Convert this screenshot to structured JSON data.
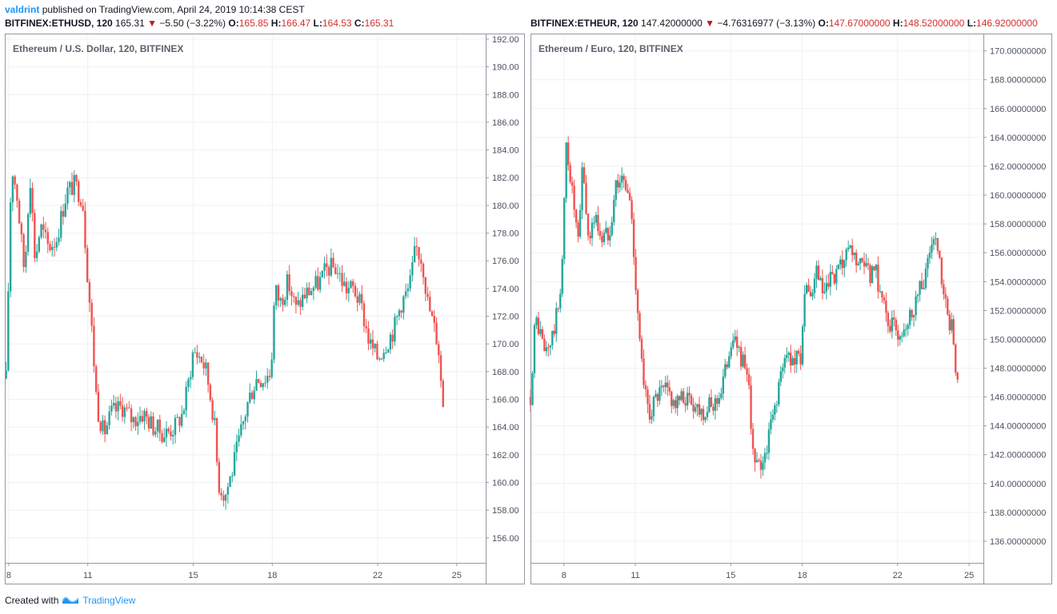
{
  "header": {
    "user": "valdrint",
    "text": "published on TradingView.com, April 24, 2019 10:14:38 CEST"
  },
  "footer": {
    "created_with": "Created with",
    "brand": "TradingView"
  },
  "panels": [
    {
      "legend": {
        "symbol": "BITFINEX:ETHUSD, 120",
        "last": "165.31",
        "change": "−5.50 (−3.22%)",
        "o_label": "O:",
        "o": "165.85",
        "h_label": "H:",
        "h": "166.47",
        "l_label": "L:",
        "l": "164.53",
        "c_label": "C:",
        "c": "165.31"
      },
      "title": "Ethereum / U.S. Dollar, 120, BITFINEX"
    },
    {
      "legend": {
        "symbol": "BITFINEX:ETHEUR, 120",
        "last": "147.42000000",
        "change": "−4.76316977 (−3.13%)",
        "o_label": "O:",
        "o": "147.67000000",
        "h_label": "H:",
        "h": "148.52000000",
        "l_label": "L:",
        "l": "146.92000000"
      },
      "title": "Ethereum / Euro, 120, BITFINEX"
    }
  ],
  "chart_data": [
    {
      "type": "candlestick",
      "title": "Ethereum / U.S. Dollar, 120, BITFINEX",
      "x_ticks": [
        "8",
        "11",
        "15",
        "18",
        "22",
        "25"
      ],
      "x_tick_days": [
        8,
        11,
        15,
        18,
        22,
        25
      ],
      "x_range_days": [
        7.85,
        26.1
      ],
      "y_ticks": [
        "156.00",
        "158.00",
        "160.00",
        "162.00",
        "164.00",
        "166.00",
        "168.00",
        "170.00",
        "172.00",
        "174.00",
        "176.00",
        "178.00",
        "180.00",
        "182.00",
        "184.00",
        "186.00",
        "188.00",
        "190.00",
        "192.00"
      ],
      "ylim": [
        154.2,
        192.4
      ],
      "up_color": "#26a69a",
      "down_color": "#ef5350",
      "grid": true,
      "close_path": [
        [
          7.9,
          167.5
        ],
        [
          8.1,
          183.0
        ],
        [
          8.3,
          181.0
        ],
        [
          8.6,
          175.0
        ],
        [
          8.8,
          182.5
        ],
        [
          9.0,
          176.0
        ],
        [
          9.2,
          178.5
        ],
        [
          9.5,
          177.0
        ],
        [
          9.8,
          177.5
        ],
        [
          10.2,
          181.0
        ],
        [
          10.5,
          181.5
        ],
        [
          10.8,
          180.5
        ],
        [
          10.95,
          176.0
        ],
        [
          11.15,
          171.0
        ],
        [
          11.35,
          165.5
        ],
        [
          11.6,
          163.5
        ],
        [
          11.9,
          165.0
        ],
        [
          12.3,
          165.5
        ],
        [
          12.7,
          164.5
        ],
        [
          13.1,
          165.0
        ],
        [
          13.5,
          164.0
        ],
        [
          13.9,
          163.5
        ],
        [
          14.3,
          164.0
        ],
        [
          14.6,
          165.0
        ],
        [
          14.8,
          167.0
        ],
        [
          15.0,
          169.5
        ],
        [
          15.3,
          169.0
        ],
        [
          15.5,
          168.0
        ],
        [
          15.8,
          164.5
        ],
        [
          15.95,
          160.0
        ],
        [
          16.2,
          159.0
        ],
        [
          16.5,
          161.0
        ],
        [
          16.8,
          163.5
        ],
        [
          17.1,
          166.0
        ],
        [
          17.4,
          167.5
        ],
        [
          17.7,
          167.5
        ],
        [
          17.95,
          168.0
        ],
        [
          18.1,
          174.0
        ],
        [
          18.3,
          173.0
        ],
        [
          18.6,
          174.5
        ],
        [
          18.9,
          172.5
        ],
        [
          19.2,
          173.5
        ],
        [
          19.5,
          174.0
        ],
        [
          19.8,
          174.5
        ],
        [
          20.1,
          175.5
        ],
        [
          20.4,
          175.5
        ],
        [
          20.8,
          174.0
        ],
        [
          21.1,
          174.0
        ],
        [
          21.4,
          172.5
        ],
        [
          21.7,
          170.0
        ],
        [
          22.0,
          169.0
        ],
        [
          22.3,
          170.0
        ],
        [
          22.6,
          171.0
        ],
        [
          22.9,
          173.0
        ],
        [
          23.2,
          174.0
        ],
        [
          23.45,
          177.0
        ],
        [
          23.7,
          176.0
        ],
        [
          23.9,
          173.0
        ],
        [
          24.1,
          171.5
        ],
        [
          24.3,
          170.0
        ],
        [
          24.45,
          166.0
        ],
        [
          24.55,
          165.3
        ]
      ]
    },
    {
      "type": "candlestick",
      "title": "Ethereum / Euro, 120, BITFINEX",
      "x_ticks": [
        "8",
        "11",
        "15",
        "18",
        "22",
        "25"
      ],
      "x_tick_days": [
        8,
        11,
        15,
        18,
        22,
        25
      ],
      "x_range_days": [
        6.6,
        25.6
      ],
      "y_ticks": [
        "136.00000000",
        "138.00000000",
        "140.00000000",
        "142.00000000",
        "144.00000000",
        "146.00000000",
        "148.00000000",
        "150.00000000",
        "152.00000000",
        "154.00000000",
        "156.00000000",
        "158.00000000",
        "160.00000000",
        "162.00000000",
        "164.00000000",
        "166.00000000",
        "168.00000000",
        "170.00000000"
      ],
      "ylim": [
        134.5,
        171.2
      ],
      "up_color": "#26a69a",
      "down_color": "#ef5350",
      "grid": true,
      "close_path": [
        [
          6.6,
          146.0
        ],
        [
          6.8,
          151.5
        ],
        [
          7.0,
          150.5
        ],
        [
          7.2,
          149.0
        ],
        [
          7.5,
          150.0
        ],
        [
          7.8,
          152.5
        ],
        [
          7.95,
          156.0
        ],
        [
          8.1,
          163.5
        ],
        [
          8.3,
          161.0
        ],
        [
          8.6,
          156.5
        ],
        [
          8.8,
          162.5
        ],
        [
          9.0,
          157.0
        ],
        [
          9.3,
          158.5
        ],
        [
          9.6,
          157.0
        ],
        [
          9.9,
          157.5
        ],
        [
          10.2,
          161.0
        ],
        [
          10.5,
          161.0
        ],
        [
          10.8,
          159.5
        ],
        [
          10.95,
          155.5
        ],
        [
          11.15,
          151.0
        ],
        [
          11.35,
          146.5
        ],
        [
          11.6,
          145.0
        ],
        [
          11.9,
          146.0
        ],
        [
          12.3,
          146.5
        ],
        [
          12.7,
          145.5
        ],
        [
          13.1,
          146.0
        ],
        [
          13.5,
          145.5
        ],
        [
          13.9,
          145.0
        ],
        [
          14.3,
          145.5
        ],
        [
          14.6,
          146.5
        ],
        [
          14.8,
          148.0
        ],
        [
          15.0,
          150.0
        ],
        [
          15.3,
          149.5
        ],
        [
          15.5,
          148.5
        ],
        [
          15.8,
          146.0
        ],
        [
          15.95,
          141.5
        ],
        [
          16.2,
          141.0
        ],
        [
          16.5,
          142.5
        ],
        [
          16.8,
          145.0
        ],
        [
          17.1,
          147.5
        ],
        [
          17.4,
          149.0
        ],
        [
          17.7,
          148.5
        ],
        [
          17.95,
          149.0
        ],
        [
          18.1,
          153.5
        ],
        [
          18.3,
          152.5
        ],
        [
          18.6,
          154.5
        ],
        [
          18.9,
          153.0
        ],
        [
          19.2,
          154.0
        ],
        [
          19.5,
          154.5
        ],
        [
          19.8,
          155.5
        ],
        [
          20.1,
          156.0
        ],
        [
          20.4,
          155.0
        ],
        [
          20.8,
          154.5
        ],
        [
          21.1,
          154.5
        ],
        [
          21.4,
          152.5
        ],
        [
          21.7,
          151.0
        ],
        [
          22.0,
          150.5
        ],
        [
          22.3,
          151.0
        ],
        [
          22.6,
          152.0
        ],
        [
          22.9,
          153.5
        ],
        [
          23.2,
          154.5
        ],
        [
          23.45,
          157.0
        ],
        [
          23.7,
          156.0
        ],
        [
          23.9,
          153.0
        ],
        [
          24.1,
          151.5
        ],
        [
          24.3,
          150.5
        ],
        [
          24.45,
          148.0
        ],
        [
          24.55,
          147.4
        ]
      ]
    }
  ]
}
